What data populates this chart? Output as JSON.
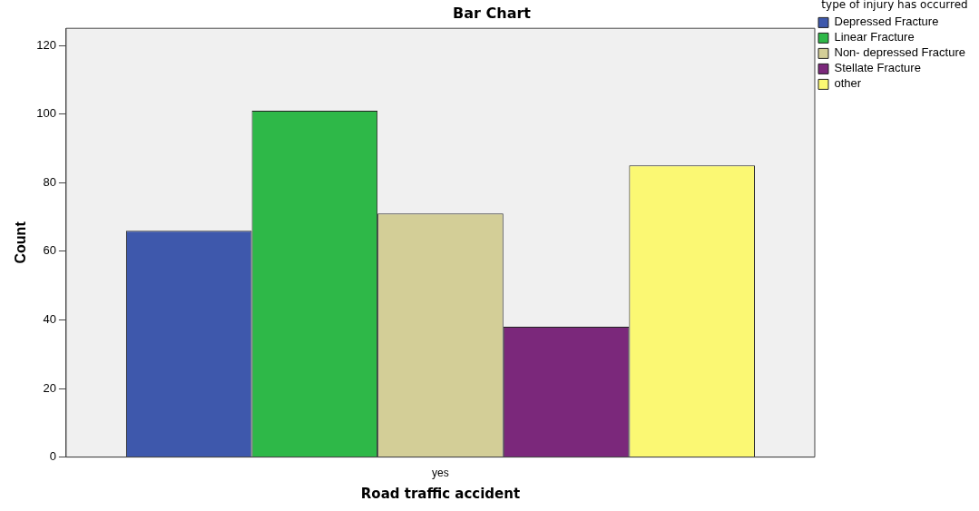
{
  "chart_data": {
    "type": "bar",
    "title": "Bar Chart",
    "xlabel": "Road traffic accident",
    "ylabel": "Count",
    "legend_title": "type of injury has occurred",
    "categories": [
      "yes"
    ],
    "series": [
      {
        "name": "Depressed Fracture",
        "color": "#3e58ac",
        "values": [
          66
        ]
      },
      {
        "name": "Linear Fracture",
        "color": "#2eb848",
        "values": [
          101
        ]
      },
      {
        "name": "Non- depressed Fracture",
        "color": "#d3ce97",
        "values": [
          71
        ]
      },
      {
        "name": "Stellate Fracture",
        "color": "#7b287b",
        "values": [
          38
        ]
      },
      {
        "name": "other",
        "color": "#fbf873",
        "values": [
          85
        ]
      }
    ],
    "ylim": [
      0,
      125
    ],
    "yticks": [
      0,
      20,
      40,
      60,
      80,
      100,
      120
    ],
    "grid": false,
    "legend": "right"
  }
}
